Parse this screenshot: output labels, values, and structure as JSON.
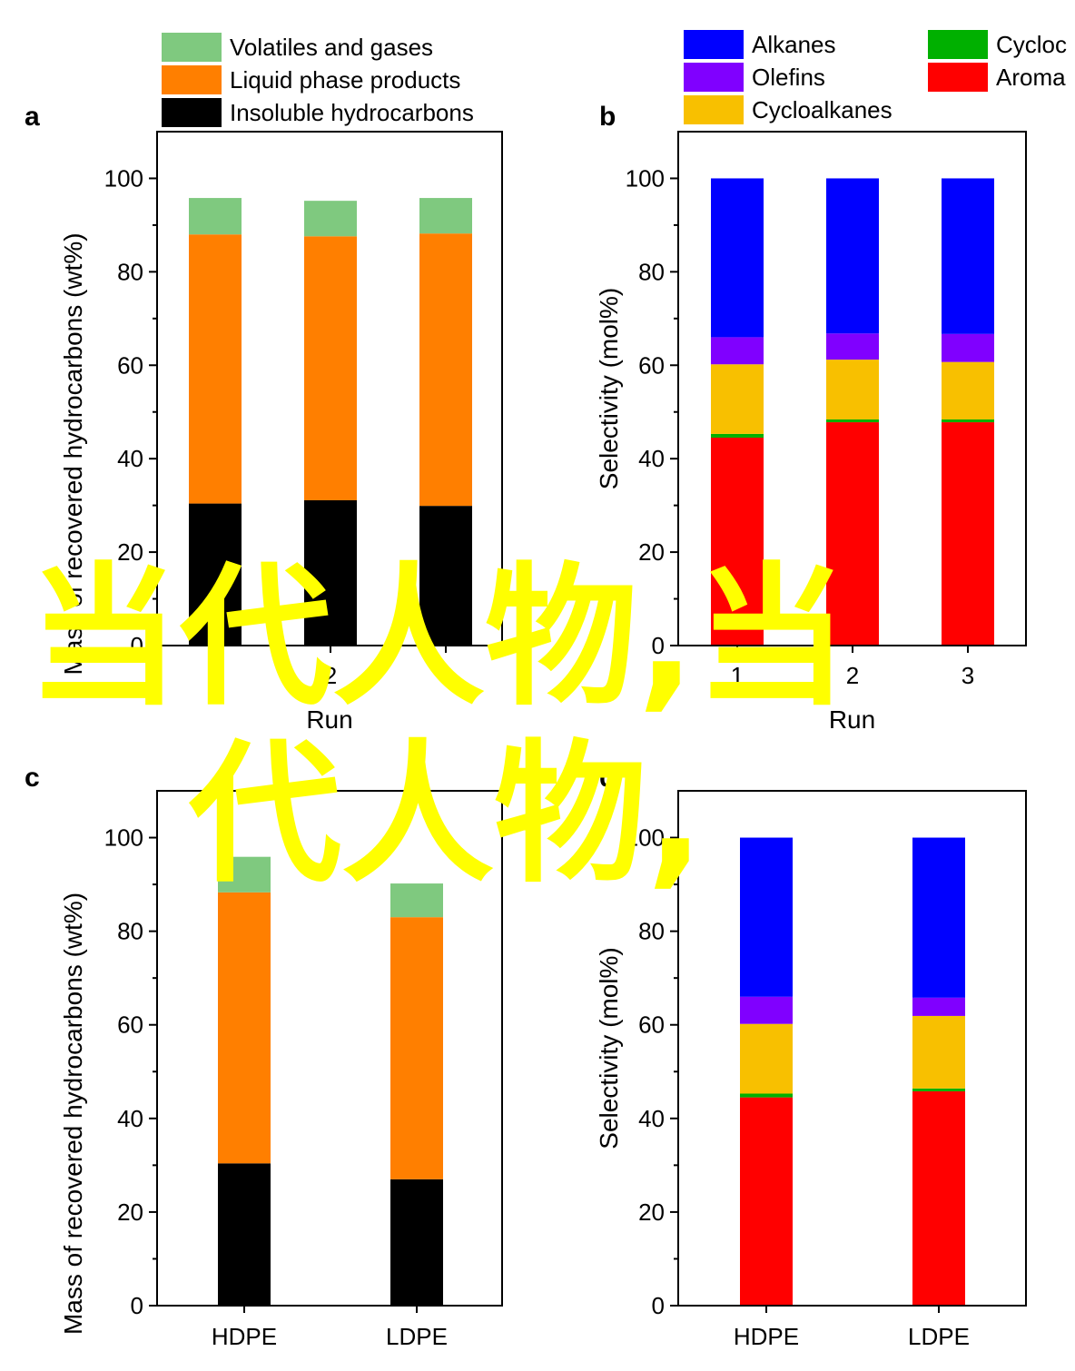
{
  "overlay": {
    "line1": "当代人物,当",
    "line2": "代人物,",
    "color": "#ffff00"
  },
  "legends": {
    "mass": [
      {
        "label": "Volatiles and gases",
        "color": "#7fc97f"
      },
      {
        "label": "Liquid phase products",
        "color": "#ff7f00"
      },
      {
        "label": "Insoluble hydrocarbons",
        "color": "#000000"
      }
    ],
    "selectivity": [
      {
        "label": "Alkanes",
        "color": "#0000ff"
      },
      {
        "label": "Olefins",
        "color": "#8000ff"
      },
      {
        "label": "Cycloalkanes",
        "color": "#f8c000"
      },
      {
        "label": "Cycloc",
        "color": "#00b000"
      },
      {
        "label": "Aroma",
        "color": "#ff0000"
      }
    ]
  },
  "chart_data": [
    {
      "panel": "a",
      "type": "bar",
      "stacked": true,
      "xlabel": "Run",
      "ylabel": "Mass of recovered hydrocarbons (wt%)",
      "categories": [
        "1",
        "2",
        "3"
      ],
      "ylim": [
        0,
        110
      ],
      "yticks": [
        0,
        20,
        40,
        60,
        80,
        100
      ],
      "series": [
        {
          "name": "Insoluble hydrocarbons",
          "color": "#000000",
          "values": [
            30.4,
            31.1,
            29.9
          ]
        },
        {
          "name": "Liquid phase products",
          "color": "#ff7f00",
          "values": [
            57.6,
            56.5,
            58.3
          ]
        },
        {
          "name": "Volatiles and gases",
          "color": "#7fc97f",
          "values": [
            7.8,
            7.6,
            7.6
          ]
        }
      ]
    },
    {
      "panel": "b",
      "type": "bar",
      "stacked": true,
      "xlabel": "Run",
      "ylabel": "Selectivity (mol%)",
      "categories": [
        "1",
        "2",
        "3"
      ],
      "ylim": [
        0,
        110
      ],
      "yticks": [
        0,
        20,
        40,
        60,
        80,
        100
      ],
      "series": [
        {
          "name": "Aroma",
          "color": "#ff0000",
          "values": [
            44.5,
            47.8,
            47.8
          ]
        },
        {
          "name": "Cycloc",
          "color": "#00b000",
          "values": [
            0.8,
            0.6,
            0.6
          ]
        },
        {
          "name": "Cycloalkanes",
          "color": "#f8c000",
          "values": [
            14.9,
            12.8,
            12.3
          ]
        },
        {
          "name": "Olefins",
          "color": "#8000ff",
          "values": [
            5.8,
            5.6,
            6.0
          ]
        },
        {
          "name": "Alkanes",
          "color": "#0000ff",
          "values": [
            34.0,
            33.2,
            33.3
          ]
        }
      ]
    },
    {
      "panel": "c",
      "type": "bar",
      "stacked": true,
      "xlabel": "",
      "ylabel": "Mass of recovered hydrocarbons (wt%)",
      "categories": [
        "HDPE",
        "LDPE"
      ],
      "ylim": [
        0,
        110
      ],
      "yticks": [
        0,
        20,
        40,
        60,
        80,
        100
      ],
      "series": [
        {
          "name": "Insoluble hydrocarbons",
          "color": "#000000",
          "values": [
            30.4,
            27.0
          ]
        },
        {
          "name": "Liquid phase products",
          "color": "#ff7f00",
          "values": [
            57.9,
            56.0
          ]
        },
        {
          "name": "Volatiles and gases",
          "color": "#7fc97f",
          "values": [
            7.6,
            7.2
          ]
        }
      ]
    },
    {
      "panel": "d",
      "type": "bar",
      "stacked": true,
      "xlabel": "",
      "ylabel": "Selectivity (mol%)",
      "categories": [
        "HDPE",
        "LDPE"
      ],
      "ylim": [
        0,
        110
      ],
      "yticks": [
        0,
        20,
        40,
        60,
        80,
        100
      ],
      "series": [
        {
          "name": "Aroma",
          "color": "#ff0000",
          "values": [
            44.5,
            45.8
          ]
        },
        {
          "name": "Cycloc",
          "color": "#00b000",
          "values": [
            0.8,
            0.6
          ]
        },
        {
          "name": "Cycloalkanes",
          "color": "#f8c000",
          "values": [
            14.9,
            15.5
          ]
        },
        {
          "name": "Olefins",
          "color": "#8000ff",
          "values": [
            5.8,
            3.9
          ]
        },
        {
          "name": "Alkanes",
          "color": "#0000ff",
          "values": [
            34.0,
            34.2
          ]
        }
      ]
    }
  ]
}
